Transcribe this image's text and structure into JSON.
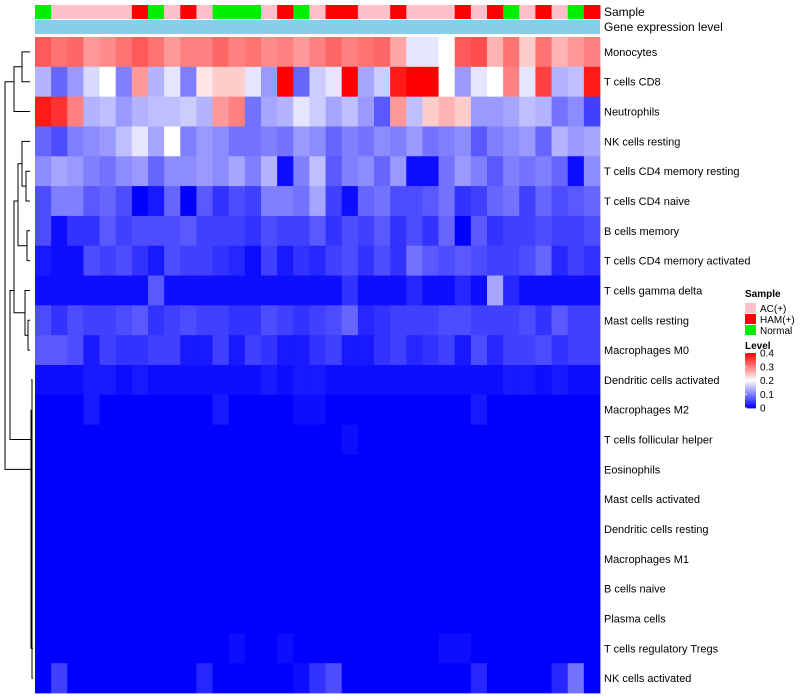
{
  "chart_data": {
    "type": "heatmap",
    "annotations": {
      "sample_label": "Sample",
      "expression_label": "Gene expression level"
    },
    "sample_groups": [
      "Normal",
      "AC(+)",
      "AC(+)",
      "AC(+)",
      "AC(+)",
      "AC(+)",
      "HAM(+)",
      "Normal",
      "AC(+)",
      "HAM(+)",
      "AC(+)",
      "Normal",
      "Normal",
      "Normal",
      "AC(+)",
      "HAM(+)",
      "Normal",
      "AC(+)",
      "HAM(+)",
      "HAM(+)",
      "AC(+)",
      "AC(+)",
      "HAM(+)",
      "AC(+)",
      "AC(+)",
      "AC(+)",
      "HAM(+)",
      "AC(+)",
      "HAM(+)",
      "Normal",
      "AC(+)",
      "HAM(+)",
      "AC(+)",
      "Normal",
      "HAM(+)"
    ],
    "rows": [
      {
        "label": "Monocytes",
        "values": [
          0.33,
          0.31,
          0.32,
          0.28,
          0.29,
          0.31,
          0.33,
          0.31,
          0.28,
          0.3,
          0.3,
          0.32,
          0.3,
          0.31,
          0.29,
          0.3,
          0.28,
          0.3,
          0.32,
          0.3,
          0.31,
          0.32,
          0.27,
          0.18,
          0.18,
          0.2,
          0.33,
          0.34,
          0.26,
          0.31,
          0.24,
          0.31,
          0.26,
          0.28,
          0.3
        ]
      },
      {
        "label": "T cells CD8",
        "values": [
          0.14,
          0.08,
          0.12,
          0.17,
          0.2,
          0.1,
          0.28,
          0.14,
          0.18,
          0.1,
          0.22,
          0.24,
          0.24,
          0.18,
          0.12,
          0.4,
          0.08,
          0.16,
          0.18,
          0.4,
          0.13,
          0.16,
          0.38,
          0.4,
          0.4,
          0.2,
          0.12,
          0.18,
          0.2,
          0.3,
          0.18,
          0.35,
          0.14,
          0.15,
          0.38
        ]
      },
      {
        "label": "Neutrophils",
        "values": [
          0.38,
          0.36,
          0.3,
          0.14,
          0.15,
          0.12,
          0.14,
          0.15,
          0.15,
          0.16,
          0.14,
          0.28,
          0.3,
          0.09,
          0.13,
          0.14,
          0.18,
          0.16,
          0.13,
          0.15,
          0.12,
          0.07,
          0.28,
          0.15,
          0.24,
          0.26,
          0.24,
          0.12,
          0.12,
          0.13,
          0.15,
          0.14,
          0.09,
          0.11,
          0.05
        ]
      },
      {
        "label": "NK cells resting",
        "values": [
          0.08,
          0.06,
          0.1,
          0.11,
          0.12,
          0.15,
          0.18,
          0.13,
          0.2,
          0.1,
          0.12,
          0.11,
          0.09,
          0.09,
          0.1,
          0.09,
          0.12,
          0.11,
          0.08,
          0.1,
          0.09,
          0.11,
          0.1,
          0.12,
          0.09,
          0.1,
          0.11,
          0.07,
          0.1,
          0.11,
          0.12,
          0.08,
          0.14,
          0.12,
          0.13
        ]
      },
      {
        "label": "T cells CD4 memory resting",
        "values": [
          0.11,
          0.13,
          0.12,
          0.1,
          0.09,
          0.11,
          0.12,
          0.08,
          0.11,
          0.11,
          0.12,
          0.11,
          0.13,
          0.1,
          0.14,
          0.01,
          0.1,
          0.15,
          0.07,
          0.1,
          0.11,
          0.08,
          0.12,
          0.01,
          0.01,
          0.09,
          0.12,
          0.1,
          0.07,
          0.1,
          0.09,
          0.1,
          0.08,
          0.01,
          0.11
        ]
      },
      {
        "label": "T cells CD4 naive",
        "values": [
          0.06,
          0.1,
          0.1,
          0.07,
          0.08,
          0.06,
          0.0,
          0.02,
          0.08,
          0.0,
          0.07,
          0.04,
          0.06,
          0.05,
          0.1,
          0.1,
          0.09,
          0.13,
          0.05,
          0.01,
          0.08,
          0.09,
          0.06,
          0.06,
          0.07,
          0.09,
          0.04,
          0.05,
          0.08,
          0.09,
          0.05,
          0.08,
          0.06,
          0.07,
          0.08
        ]
      },
      {
        "label": "B cells memory",
        "values": [
          0.06,
          0.01,
          0.04,
          0.04,
          0.07,
          0.05,
          0.06,
          0.06,
          0.06,
          0.07,
          0.05,
          0.05,
          0.05,
          0.04,
          0.06,
          0.05,
          0.05,
          0.07,
          0.04,
          0.06,
          0.05,
          0.07,
          0.04,
          0.06,
          0.04,
          0.08,
          0.0,
          0.07,
          0.04,
          0.05,
          0.05,
          0.06,
          0.05,
          0.05,
          0.06
        ]
      },
      {
        "label": "T cells CD4 memory activated",
        "values": [
          0.02,
          0.01,
          0.01,
          0.06,
          0.05,
          0.06,
          0.04,
          0.02,
          0.06,
          0.05,
          0.05,
          0.04,
          0.03,
          0.01,
          0.05,
          0.02,
          0.04,
          0.03,
          0.05,
          0.06,
          0.04,
          0.06,
          0.04,
          0.09,
          0.07,
          0.06,
          0.07,
          0.06,
          0.05,
          0.05,
          0.06,
          0.08,
          0.03,
          0.05,
          0.04
        ]
      },
      {
        "label": "T cells gamma delta",
        "values": [
          0.01,
          0.01,
          0.01,
          0.01,
          0.01,
          0.01,
          0.01,
          0.07,
          0.01,
          0.01,
          0.01,
          0.01,
          0.01,
          0.01,
          0.01,
          0.01,
          0.01,
          0.01,
          0.01,
          0.04,
          0.01,
          0.01,
          0.01,
          0.03,
          0.01,
          0.01,
          0.03,
          0.01,
          0.13,
          0.03,
          0.01,
          0.01,
          0.01,
          0.01,
          0.01
        ]
      },
      {
        "label": "Mast cells resting",
        "values": [
          0.06,
          0.04,
          0.06,
          0.05,
          0.05,
          0.06,
          0.07,
          0.04,
          0.05,
          0.06,
          0.05,
          0.05,
          0.04,
          0.04,
          0.06,
          0.05,
          0.04,
          0.05,
          0.06,
          0.08,
          0.03,
          0.04,
          0.05,
          0.05,
          0.05,
          0.06,
          0.06,
          0.05,
          0.05,
          0.05,
          0.06,
          0.04,
          0.07,
          0.05,
          0.05
        ]
      },
      {
        "label": "Macrophages M0",
        "values": [
          0.07,
          0.07,
          0.06,
          0.02,
          0.05,
          0.04,
          0.04,
          0.05,
          0.05,
          0.02,
          0.02,
          0.05,
          0.02,
          0.05,
          0.04,
          0.02,
          0.02,
          0.04,
          0.05,
          0.02,
          0.02,
          0.04,
          0.05,
          0.03,
          0.04,
          0.05,
          0.02,
          0.06,
          0.03,
          0.05,
          0.05,
          0.06,
          0.04,
          0.05,
          0.05
        ]
      },
      {
        "label": "Dendritic cells activated",
        "values": [
          0.01,
          0.01,
          0.01,
          0.02,
          0.02,
          0.01,
          0.02,
          0.01,
          0.01,
          0.01,
          0.01,
          0.01,
          0.01,
          0.01,
          0.02,
          0.01,
          0.02,
          0.02,
          0.01,
          0.01,
          0.01,
          0.01,
          0.01,
          0.01,
          0.01,
          0.01,
          0.01,
          0.01,
          0.01,
          0.02,
          0.02,
          0.01,
          0.02,
          0.01,
          0.01
        ]
      },
      {
        "label": "Macrophages M2",
        "values": [
          0.0,
          0.0,
          0.0,
          0.02,
          0.0,
          0.0,
          0.0,
          0.0,
          0.0,
          0.0,
          0.0,
          0.02,
          0.0,
          0.0,
          0.0,
          0.0,
          0.01,
          0.01,
          0.0,
          0.0,
          0.0,
          0.0,
          0.0,
          0.0,
          0.0,
          0.0,
          0.0,
          0.02,
          0.0,
          0.0,
          0.0,
          0.0,
          0.0,
          0.0,
          0.0
        ]
      },
      {
        "label": "T cells follicular helper",
        "values": [
          0.0,
          0.0,
          0.0,
          0.0,
          0.0,
          0.0,
          0.0,
          0.0,
          0.0,
          0.0,
          0.0,
          0.0,
          0.0,
          0.0,
          0.0,
          0.0,
          0.0,
          0.0,
          0.0,
          0.01,
          0.0,
          0.0,
          0.0,
          0.0,
          0.0,
          0.0,
          0.0,
          0.0,
          0.0,
          0.0,
          0.0,
          0.0,
          0.0,
          0.0,
          0.0
        ]
      },
      {
        "label": "Eosinophils",
        "values": [
          0.0,
          0.0,
          0.0,
          0.0,
          0.0,
          0.0,
          0.0,
          0.0,
          0.0,
          0.0,
          0.0,
          0.0,
          0.0,
          0.0,
          0.0,
          0.0,
          0.0,
          0.0,
          0.0,
          0.0,
          0.0,
          0.0,
          0.0,
          0.0,
          0.0,
          0.0,
          0.0,
          0.0,
          0.0,
          0.0,
          0.0,
          0.0,
          0.0,
          0.0,
          0.0
        ]
      },
      {
        "label": "Mast cells activated",
        "values": [
          0.0,
          0.0,
          0.0,
          0.0,
          0.0,
          0.0,
          0.0,
          0.0,
          0.0,
          0.0,
          0.0,
          0.0,
          0.0,
          0.0,
          0.0,
          0.0,
          0.0,
          0.0,
          0.0,
          0.0,
          0.0,
          0.0,
          0.0,
          0.0,
          0.0,
          0.0,
          0.0,
          0.0,
          0.0,
          0.0,
          0.0,
          0.0,
          0.0,
          0.0,
          0.0
        ]
      },
      {
        "label": "Dendritic cells resting",
        "values": [
          0.0,
          0.0,
          0.0,
          0.0,
          0.0,
          0.0,
          0.0,
          0.0,
          0.0,
          0.0,
          0.0,
          0.0,
          0.0,
          0.0,
          0.0,
          0.0,
          0.0,
          0.0,
          0.0,
          0.0,
          0.0,
          0.0,
          0.0,
          0.0,
          0.0,
          0.0,
          0.0,
          0.0,
          0.0,
          0.0,
          0.0,
          0.0,
          0.0,
          0.0,
          0.0
        ]
      },
      {
        "label": "Macrophages M1",
        "values": [
          0.0,
          0.0,
          0.0,
          0.0,
          0.0,
          0.0,
          0.0,
          0.0,
          0.0,
          0.0,
          0.0,
          0.0,
          0.0,
          0.0,
          0.0,
          0.0,
          0.0,
          0.0,
          0.0,
          0.0,
          0.0,
          0.0,
          0.0,
          0.0,
          0.0,
          0.0,
          0.0,
          0.0,
          0.0,
          0.0,
          0.0,
          0.0,
          0.0,
          0.0,
          0.0
        ]
      },
      {
        "label": "B cells naive",
        "values": [
          0.0,
          0.0,
          0.0,
          0.0,
          0.0,
          0.0,
          0.0,
          0.0,
          0.0,
          0.0,
          0.0,
          0.0,
          0.0,
          0.0,
          0.0,
          0.0,
          0.0,
          0.0,
          0.0,
          0.0,
          0.0,
          0.0,
          0.0,
          0.0,
          0.0,
          0.0,
          0.0,
          0.0,
          0.0,
          0.0,
          0.0,
          0.0,
          0.0,
          0.0,
          0.0
        ]
      },
      {
        "label": "Plasma cells",
        "values": [
          0.0,
          0.0,
          0.0,
          0.0,
          0.0,
          0.0,
          0.0,
          0.0,
          0.0,
          0.0,
          0.0,
          0.0,
          0.0,
          0.0,
          0.0,
          0.0,
          0.0,
          0.0,
          0.0,
          0.0,
          0.0,
          0.0,
          0.0,
          0.0,
          0.0,
          0.0,
          0.0,
          0.0,
          0.0,
          0.0,
          0.0,
          0.0,
          0.0,
          0.0,
          0.0
        ]
      },
      {
        "label": "T cells regulatory  Tregs",
        "values": [
          0.0,
          0.0,
          0.0,
          0.0,
          0.0,
          0.0,
          0.0,
          0.0,
          0.0,
          0.0,
          0.0,
          0.0,
          0.01,
          0.0,
          0.0,
          0.01,
          0.0,
          0.0,
          0.0,
          0.0,
          0.0,
          0.0,
          0.0,
          0.0,
          0.0,
          0.01,
          0.01,
          0.0,
          0.0,
          0.0,
          0.0,
          0.0,
          0.0,
          0.0,
          0.0
        ]
      },
      {
        "label": "NK cells activated",
        "values": [
          0.0,
          0.05,
          0.0,
          0.0,
          0.0,
          0.0,
          0.0,
          0.0,
          0.0,
          0.0,
          0.03,
          0.0,
          0.0,
          0.0,
          0.0,
          0.0,
          0.01,
          0.04,
          0.06,
          0.0,
          0.0,
          0.0,
          0.0,
          0.0,
          0.0,
          0.0,
          0.0,
          0.03,
          0.0,
          0.0,
          0.0,
          0.0,
          0.03,
          0.09,
          0.0
        ]
      }
    ],
    "color_scale": {
      "domain": [
        0,
        0.2,
        0.4
      ],
      "colors": [
        "#0000ff",
        "#ffffff",
        "#ff0000"
      ]
    },
    "legend_sample": {
      "title": "Sample",
      "entries": [
        {
          "label": "AC(+)",
          "color": "#ffc0cb"
        },
        {
          "label": "HAM(+)",
          "color": "#ff0000"
        },
        {
          "label": "Normal",
          "color": "#00ee00"
        }
      ]
    },
    "legend_level": {
      "title": "Level",
      "ticks": [
        {
          "label": "0.4",
          "value": 0.4
        },
        {
          "label": "0.3",
          "value": 0.3
        },
        {
          "label": "0.2",
          "value": 0.2
        },
        {
          "label": "0.1",
          "value": 0.1
        },
        {
          "label": "0",
          "value": 0
        }
      ]
    },
    "expression_color": "#87ceeb"
  }
}
